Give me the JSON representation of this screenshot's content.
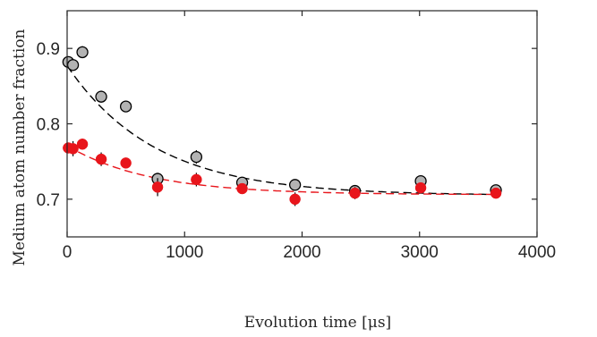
{
  "chart_data": {
    "type": "scatter",
    "title": "",
    "xlabel": "Evolution time [μs]",
    "ylabel": "Medium atom number fraction",
    "xlim": [
      0,
      4000
    ],
    "ylim": [
      0.65,
      0.95
    ],
    "x_ticks": [
      0,
      1000,
      2000,
      3000,
      4000
    ],
    "x_tick_labels": [
      "0",
      "1000",
      "2000",
      "3000",
      "4000"
    ],
    "y_ticks": [
      0.7,
      0.8,
      0.9
    ],
    "y_tick_labels": [
      "0.7",
      "0.8",
      "0.9"
    ],
    "grid": false,
    "legend": "none",
    "series": [
      {
        "color": "#b3b3b3",
        "marker": "circle-black-edge",
        "points": [
          {
            "x": 10,
            "y": 0.882,
            "err": 0.006
          },
          {
            "x": 50,
            "y": 0.878,
            "err": 0.006
          },
          {
            "x": 130,
            "y": 0.895,
            "err": 0.008
          },
          {
            "x": 290,
            "y": 0.836,
            "err": 0.008
          },
          {
            "x": 500,
            "y": 0.823,
            "err": 0.007
          },
          {
            "x": 770,
            "y": 0.727,
            "err": 0.008
          },
          {
            "x": 1100,
            "y": 0.756,
            "err": 0.009
          },
          {
            "x": 1490,
            "y": 0.722,
            "err": 0.006
          },
          {
            "x": 1940,
            "y": 0.719,
            "err": 0.006
          },
          {
            "x": 2450,
            "y": 0.711,
            "err": 0.006
          },
          {
            "x": 3010,
            "y": 0.724,
            "err": 0.007
          },
          {
            "x": 3650,
            "y": 0.712,
            "err": 0.006
          }
        ],
        "fit": {
          "style": "dashed",
          "color": "#000000",
          "a": 0.705,
          "b": 0.172,
          "tau": 750
        }
      },
      {
        "color": "#e8151b",
        "marker": "circle-filled",
        "points": [
          {
            "x": 10,
            "y": 0.768,
            "err": 0.007
          },
          {
            "x": 50,
            "y": 0.767,
            "err": 0.01
          },
          {
            "x": 130,
            "y": 0.773,
            "err": 0.007
          },
          {
            "x": 290,
            "y": 0.753,
            "err": 0.009
          },
          {
            "x": 500,
            "y": 0.748,
            "err": 0.007
          },
          {
            "x": 770,
            "y": 0.716,
            "err": 0.012
          },
          {
            "x": 1100,
            "y": 0.726,
            "err": 0.009
          },
          {
            "x": 1490,
            "y": 0.714,
            "err": 0.007
          },
          {
            "x": 1940,
            "y": 0.7,
            "err": 0.009
          },
          {
            "x": 2450,
            "y": 0.708,
            "err": 0.008
          },
          {
            "x": 3010,
            "y": 0.715,
            "err": 0.006
          },
          {
            "x": 3650,
            "y": 0.708,
            "err": 0.006
          }
        ],
        "fit": {
          "style": "dashed",
          "color": "#e8151b",
          "a": 0.706,
          "b": 0.065,
          "tau": 700
        }
      }
    ]
  }
}
